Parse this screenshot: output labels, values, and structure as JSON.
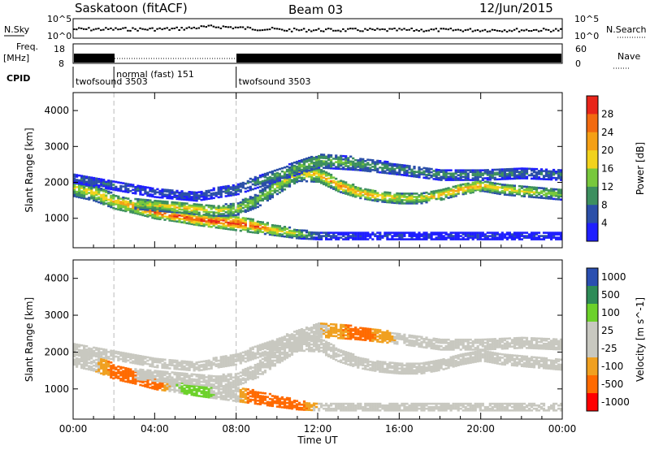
{
  "header": {
    "station": "Saskatoon (fitACF)",
    "beam": "Beam 03",
    "date": "12/Jun/2015"
  },
  "summary": {
    "nsky_label": "N.Sky",
    "nsearch_label": "N.Search",
    "noise_tick_top": "10^5",
    "noise_tick_bottom": "10^0",
    "noise_tick_top_right": "10^5",
    "noise_tick_bottom_right": "10^0",
    "freq_label_1": "Freq.",
    "freq_label_2": "[MHz]",
    "freq_tick_top": "18",
    "freq_tick_bottom": "8",
    "nave_label": "Nave",
    "nave_tick_top": "60",
    "nave_tick_bottom": "0",
    "cpid_label": "CPID",
    "cpid_segments": [
      {
        "name": "twofsound 3503",
        "start_h": 0,
        "end_h": 2
      },
      {
        "name": "normal (fast) 151",
        "start_h": 2,
        "end_h": 8
      },
      {
        "name": "twofsound 3503",
        "start_h": 8,
        "end_h": 24
      }
    ]
  },
  "colors": {
    "power_scale": [
      "#1f1fff",
      "#2b4fa8",
      "#3d8f5f",
      "#78c83c",
      "#f2d21c",
      "#f5a015",
      "#f26a10",
      "#e8251a"
    ],
    "velocity_scale": [
      "#ff0000",
      "#ff6a00",
      "#f0a020",
      "#c8c8c0",
      "#c8c8c0",
      "#6cd12a",
      "#2e8b57",
      "#2a4fb0"
    ]
  },
  "chart_data": [
    {
      "type": "heatmap",
      "panel": "power",
      "xlabel": "",
      "ylabel": "Slant Range [km]",
      "xlim": [
        0,
        24
      ],
      "ylim": [
        180,
        4500
      ],
      "yticks": [
        1000,
        2000,
        3000,
        4000
      ],
      "colorbar_label": "Power [dB]",
      "colorbar_ticks": [
        "4",
        "8",
        "12",
        "16",
        "20",
        "24",
        "28"
      ],
      "vertical_markers_h": [
        2,
        8
      ],
      "echo_bands": [
        {
          "x": [
            0,
            1,
            2,
            3,
            4,
            5,
            6,
            7,
            8,
            9,
            10,
            11,
            12,
            13,
            14,
            15,
            16,
            17,
            18,
            19,
            20,
            21,
            22,
            23,
            24
          ],
          "center_km": [
            1850,
            1700,
            1450,
            1300,
            1150,
            1050,
            950,
            900,
            850,
            750,
            650,
            550,
            500,
            500,
            500,
            500,
            500,
            500,
            500,
            500,
            500,
            500,
            500,
            500,
            500
          ],
          "width_km": [
            500,
            450,
            400,
            350,
            350,
            300,
            300,
            350,
            400,
            350,
            300,
            250,
            200,
            200,
            200,
            200,
            200,
            200,
            200,
            200,
            200,
            200,
            200,
            200,
            200
          ],
          "peak_db": [
            18,
            20,
            22,
            24,
            26,
            28,
            28,
            28,
            28,
            26,
            22,
            18,
            10,
            8,
            6,
            6,
            6,
            6,
            6,
            6,
            6,
            6,
            6,
            6,
            6
          ]
        },
        {
          "x": [
            3,
            4,
            5,
            6,
            7,
            8,
            9,
            10,
            11,
            12,
            13,
            14,
            15,
            16,
            17,
            18,
            19,
            20,
            21,
            22,
            23,
            24
          ],
          "center_km": [
            1400,
            1350,
            1300,
            1250,
            1200,
            1250,
            1500,
            1900,
            2250,
            2200,
            1900,
            1700,
            1600,
            1550,
            1550,
            1650,
            1800,
            1900,
            1800,
            1750,
            1700,
            1650
          ],
          "width_km": [
            300,
            300,
            300,
            300,
            300,
            350,
            400,
            450,
            450,
            400,
            350,
            300,
            300,
            300,
            300,
            300,
            300,
            300,
            300,
            300,
            300,
            300
          ],
          "peak_db": [
            18,
            20,
            22,
            22,
            20,
            18,
            16,
            18,
            20,
            22,
            24,
            24,
            22,
            20,
            20,
            22,
            24,
            22,
            20,
            20,
            18,
            16
          ]
        },
        {
          "x": [
            0,
            2,
            4,
            6,
            8,
            10,
            12,
            14,
            16,
            18,
            20,
            22,
            24
          ],
          "center_km": [
            2100,
            1900,
            1700,
            1600,
            1800,
            2200,
            2600,
            2500,
            2350,
            2200,
            2200,
            2250,
            2200
          ],
          "width_km": [
            250,
            250,
            250,
            250,
            300,
            350,
            400,
            350,
            300,
            300,
            300,
            300,
            300
          ],
          "peak_db": [
            10,
            9,
            8,
            8,
            10,
            14,
            16,
            14,
            12,
            12,
            12,
            10,
            10
          ]
        }
      ]
    },
    {
      "type": "heatmap",
      "panel": "velocity",
      "xlabel": "Time UT",
      "ylabel": "Slant Range [km]",
      "xlim": [
        0,
        24
      ],
      "ylim": [
        180,
        4500
      ],
      "xticks": [
        "00:00",
        "04:00",
        "08:00",
        "12:00",
        "16:00",
        "20:00",
        "00:00"
      ],
      "yticks": [
        1000,
        2000,
        3000,
        4000
      ],
      "colorbar_label": "Velocity [m s^-1]",
      "colorbar_ticks": [
        "1000",
        "500",
        "100",
        "25",
        "-25",
        "-100",
        "-500",
        "-1000"
      ],
      "vertical_markers_h": [
        2,
        8
      ],
      "echo_bands": [
        {
          "x": [
            0,
            1,
            2,
            3,
            4,
            5,
            6,
            7,
            8,
            9,
            10,
            11,
            12,
            13,
            14,
            15,
            16,
            17,
            18,
            19,
            20,
            21,
            22,
            23,
            24
          ],
          "center_km": [
            1850,
            1700,
            1450,
            1300,
            1150,
            1050,
            950,
            900,
            850,
            750,
            650,
            550,
            500,
            500,
            500,
            500,
            500,
            500,
            500,
            500,
            500,
            500,
            500,
            500,
            500
          ],
          "width_km": [
            500,
            450,
            400,
            350,
            350,
            300,
            300,
            350,
            400,
            350,
            300,
            250,
            200,
            200,
            200,
            200,
            200,
            200,
            200,
            200,
            200,
            200,
            200,
            200,
            200
          ],
          "velocity_ms": [
            0,
            0,
            -150,
            -150,
            -200,
            80,
            200,
            60,
            0,
            -200,
            -250,
            -150,
            0,
            0,
            0,
            0,
            0,
            0,
            0,
            0,
            0,
            0,
            0,
            0,
            0
          ]
        },
        {
          "x": [
            3,
            4,
            5,
            6,
            7,
            8,
            9,
            10,
            11,
            12,
            13,
            14,
            15,
            16,
            17,
            18,
            19,
            20,
            21,
            22,
            23,
            24
          ],
          "center_km": [
            1400,
            1350,
            1300,
            1250,
            1200,
            1250,
            1500,
            1900,
            2250,
            2200,
            1900,
            1700,
            1600,
            1550,
            1550,
            1650,
            1800,
            1900,
            1800,
            1750,
            1700,
            1650
          ],
          "width_km": [
            300,
            300,
            300,
            300,
            300,
            350,
            400,
            450,
            450,
            400,
            350,
            300,
            300,
            300,
            300,
            300,
            300,
            300,
            300,
            300,
            300,
            300
          ],
          "velocity_ms": [
            0,
            0,
            0,
            0,
            0,
            0,
            0,
            0,
            0,
            0,
            0,
            0,
            0,
            0,
            0,
            0,
            0,
            0,
            0,
            0,
            0,
            0
          ]
        },
        {
          "x": [
            0,
            2,
            4,
            6,
            8,
            10,
            12,
            14,
            16,
            18,
            20,
            22,
            24
          ],
          "center_km": [
            2100,
            1900,
            1700,
            1600,
            1800,
            2200,
            2600,
            2500,
            2350,
            2200,
            2200,
            2250,
            2200
          ],
          "width_km": [
            250,
            250,
            250,
            250,
            300,
            350,
            400,
            350,
            300,
            300,
            300,
            300,
            300
          ],
          "velocity_ms": [
            0,
            0,
            0,
            0,
            0,
            0,
            0,
            -150,
            0,
            0,
            0,
            0,
            0
          ]
        }
      ]
    }
  ]
}
